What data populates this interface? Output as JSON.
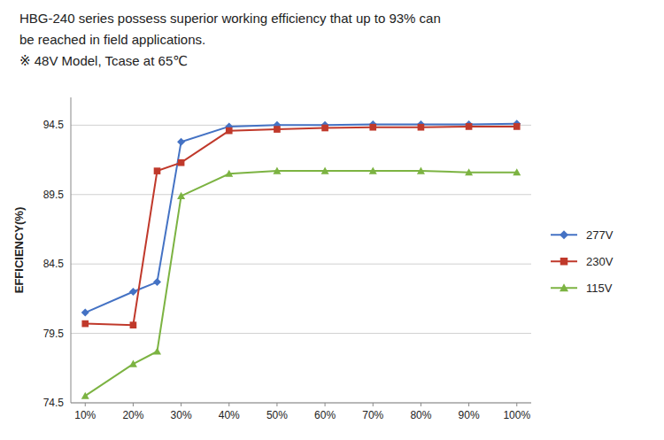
{
  "chart_data": {
    "type": "line",
    "annotations": [
      "HBG-240 series possess superior working efficiency that up to 93% can",
      "be reached in field applications.",
      "※ 48V Model, Tcase at 65℃"
    ],
    "y_label": "EFFICIENCY(%)",
    "x": [
      10,
      20,
      25,
      30,
      40,
      50,
      60,
      70,
      80,
      90,
      100
    ],
    "series": [
      {
        "name": "277V",
        "color": "#4472C4",
        "marker": "diamond",
        "values": [
          81.0,
          82.5,
          83.2,
          93.3,
          94.4,
          94.5,
          94.5,
          94.55,
          94.55,
          94.55,
          94.6
        ]
      },
      {
        "name": "230V",
        "color": "#C0392B",
        "marker": "square",
        "values": [
          80.2,
          80.1,
          91.2,
          91.8,
          94.1,
          94.2,
          94.3,
          94.35,
          94.35,
          94.4,
          94.4
        ]
      },
      {
        "name": "115V",
        "color": "#7CB342",
        "marker": "triangle",
        "values": [
          75.0,
          77.3,
          78.2,
          89.4,
          91.0,
          91.2,
          91.2,
          91.2,
          91.2,
          91.1,
          91.1
        ]
      }
    ],
    "xlim": [
      7,
      103
    ],
    "xticks": [
      {
        "value": 10,
        "label": "10%"
      },
      {
        "value": 20,
        "label": "20%"
      },
      {
        "value": 30,
        "label": "30%"
      },
      {
        "value": 40,
        "label": "40%"
      },
      {
        "value": 50,
        "label": "50%"
      },
      {
        "value": 60,
        "label": "60%"
      },
      {
        "value": 70,
        "label": "70%"
      },
      {
        "value": 80,
        "label": "80%"
      },
      {
        "value": 90,
        "label": "90%"
      },
      {
        "value": 100,
        "label": "100%"
      }
    ],
    "ylim": [
      74.5,
      96.5
    ],
    "yticks": [
      74.5,
      79.5,
      84.5,
      89.5,
      94.5
    ],
    "grid": true,
    "legend": "right"
  }
}
